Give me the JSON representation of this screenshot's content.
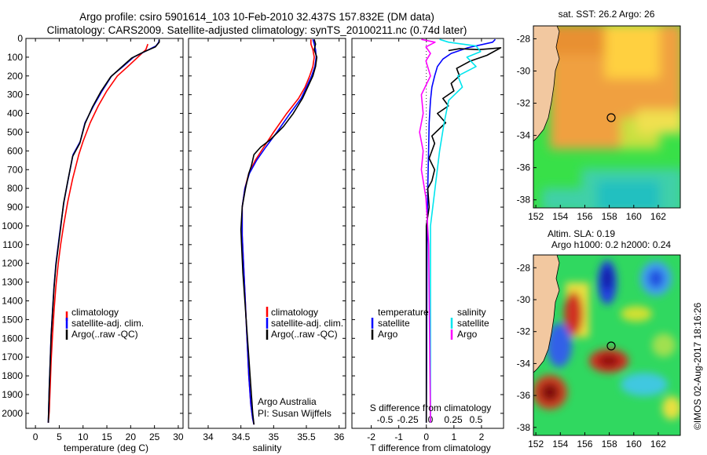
{
  "figure": {
    "title_line1": "Argo profile: csiro 5901614_103 10-Feb-2010 32.437S 157.832E (DM data)",
    "title_line2": "Climatology: CARS2009. Satellite-adjusted climatology: synTS_20100211.nc (0.74d later)",
    "credit": "©IMOS 02-Aug-2017 18:16:26",
    "colors": {
      "climatology": "#ff0000",
      "satellite": "#0000ff",
      "argo": "#000000",
      "satellite_s": "#00e5ee",
      "argo_s": "#ff00ff"
    }
  },
  "chart_data": [
    {
      "type": "line",
      "panel": "temperature",
      "xlabel": "temperature (deg C)",
      "xlim": [
        -2,
        31
      ],
      "ylim": [
        2080,
        0
      ],
      "xticks": [
        "0",
        "5",
        "10",
        "15",
        "20",
        "25",
        "30"
      ],
      "yticks": [
        "0",
        "100",
        "200",
        "300",
        "400",
        "500",
        "600",
        "700",
        "800",
        "900",
        "1000",
        "1100",
        "1200",
        "1300",
        "1400",
        "1500",
        "1600",
        "1700",
        "1800",
        "1900",
        "2000"
      ],
      "legend": [
        "climatology",
        "satellite-adj. clim.",
        "Argo(..raw -QC)"
      ],
      "series": [
        {
          "name": "climatology",
          "color": "#ff0000",
          "x": [
            23.6,
            23.2,
            21.5,
            19.4,
            17.2,
            15.0,
            13.2,
            11.5,
            10.0,
            9.1,
            7.8,
            6.8,
            5.9,
            5.3,
            4.8,
            4.3,
            3.9,
            3.6,
            3.3,
            3.1,
            2.9,
            2.7
          ],
          "y": [
            30,
            60,
            100,
            150,
            200,
            280,
            360,
            450,
            550,
            620,
            750,
            870,
            1000,
            1100,
            1200,
            1320,
            1450,
            1580,
            1720,
            1860,
            1990,
            2050
          ]
        },
        {
          "name": "satellite-adj. clim.",
          "color": "#0000ff",
          "x": [
            26.0,
            25.9,
            25.3,
            23.0,
            20.6,
            18.4,
            16.0,
            14.0,
            12.2,
            10.4,
            9.4,
            7.9,
            6.9,
            6.0,
            5.3,
            4.8,
            4.3,
            3.9,
            3.6,
            3.3,
            3.1,
            2.9,
            2.7
          ],
          "y": [
            5,
            20,
            40,
            70,
            100,
            150,
            200,
            280,
            360,
            450,
            550,
            620,
            750,
            870,
            1000,
            1100,
            1200,
            1320,
            1450,
            1580,
            1720,
            1860,
            2050
          ]
        },
        {
          "name": "Argo(..raw -QC)",
          "color": "#000000",
          "x": [
            26.0,
            26.0,
            25.2,
            22.5,
            20.2,
            18.0,
            15.8,
            13.7,
            12.0,
            10.4,
            9.3,
            7.8,
            6.8,
            5.9,
            5.3,
            4.8,
            4.3,
            3.9,
            3.6,
            3.3,
            3.1,
            2.9,
            2.7
          ],
          "y": [
            5,
            20,
            45,
            75,
            105,
            155,
            205,
            285,
            365,
            455,
            560,
            630,
            760,
            880,
            1010,
            1110,
            1210,
            1330,
            1460,
            1590,
            1730,
            1870,
            2050
          ]
        }
      ]
    },
    {
      "type": "line",
      "panel": "salinity",
      "xlabel": "salinity",
      "xlim": [
        33.7,
        36.1
      ],
      "ylim": [
        2080,
        0
      ],
      "xticks": [
        "34",
        "34.5",
        "35",
        "35.5",
        "36"
      ],
      "legend": [
        "climatology",
        "satellite-adj. clim.",
        "Argo(..raw -QC)"
      ],
      "annotation": [
        "Argo Australia",
        "PI: Susan Wijffels"
      ],
      "series": [
        {
          "name": "climatology",
          "color": "#ff0000",
          "x": [
            35.57,
            35.57,
            35.6,
            35.62,
            35.6,
            35.55,
            35.48,
            35.38,
            35.2,
            35.0,
            34.85,
            34.72,
            34.62,
            34.56,
            34.52,
            34.52,
            34.54,
            34.56,
            34.58,
            34.6,
            34.62,
            34.65,
            34.68,
            34.7
          ],
          "y": [
            5,
            30,
            60,
            100,
            150,
            200,
            260,
            320,
            400,
            500,
            580,
            650,
            720,
            800,
            900,
            1050,
            1200,
            1350,
            1500,
            1650,
            1800,
            1950,
            2030,
            2060
          ]
        },
        {
          "name": "satellite-adj. clim.",
          "color": "#0000ff",
          "x": [
            35.6,
            35.62,
            35.64,
            35.65,
            35.63,
            35.58,
            35.5,
            35.42,
            35.25,
            35.05,
            34.88,
            34.74,
            34.63,
            34.56,
            34.52,
            34.52,
            34.54,
            34.56,
            34.58,
            34.6,
            34.62,
            34.65,
            34.68,
            34.7
          ],
          "y": [
            5,
            30,
            60,
            100,
            150,
            200,
            260,
            320,
            400,
            500,
            580,
            650,
            720,
            800,
            900,
            1050,
            1200,
            1350,
            1500,
            1650,
            1800,
            1950,
            2030,
            2060
          ]
        },
        {
          "name": "Argo(..raw -QC)",
          "color": "#000000",
          "x": [
            35.62,
            35.64,
            35.62,
            35.66,
            35.64,
            35.6,
            35.52,
            35.44,
            35.3,
            35.15,
            34.95,
            34.8,
            34.7,
            34.66,
            34.62,
            34.57,
            34.52,
            34.5,
            34.51,
            34.53,
            34.56,
            34.59,
            34.62,
            34.65,
            34.68,
            34.7
          ],
          "y": [
            5,
            30,
            60,
            100,
            150,
            200,
            260,
            320,
            400,
            470,
            540,
            580,
            620,
            680,
            720,
            800,
            900,
            1020,
            1100,
            1250,
            1400,
            1550,
            1700,
            1850,
            2000,
            2060
          ]
        }
      ]
    },
    {
      "type": "line",
      "panel": "difference",
      "xlabel": "T difference from climatology",
      "xlabel_top": "S difference from climatology",
      "xlim": [
        -2.7,
        2.8
      ],
      "ylim": [
        2080,
        0
      ],
      "xticks": [
        "-2",
        "-1",
        "0",
        "1",
        "2"
      ],
      "xticks_s": [
        "-0.5",
        "-0.25",
        "0",
        "0.25",
        "0.5"
      ],
      "legend_t": {
        "title": "temperature",
        "items": [
          "satellite",
          "Argo"
        ]
      },
      "legend_s": {
        "title": "salinity",
        "items": [
          "satellite",
          "Argo"
        ]
      },
      "series": [
        {
          "name": "temperature satellite",
          "color": "#0000ff",
          "x": [
            2.5,
            2.4,
            1.5,
            0.9,
            0.6,
            0.4,
            0.3,
            0.2,
            0.15,
            0.1,
            0.08,
            0.05,
            0.03,
            0.02,
            0.01,
            0.0
          ],
          "y": [
            5,
            20,
            50,
            80,
            110,
            150,
            200,
            260,
            330,
            450,
            600,
            800,
            1000,
            1300,
            1700,
            2050
          ]
        },
        {
          "name": "temperature Argo",
          "color": "#000000",
          "x": [
            0.8,
            1.2,
            1.9,
            2.7,
            2.2,
            1.6,
            1.1,
            1.2,
            0.9,
            1.0,
            0.6,
            0.8,
            0.4,
            0.7,
            0.2,
            0.3,
            0.1,
            0.3,
            0.2,
            0.05,
            0.1,
            0.0,
            0.0
          ],
          "y": [
            65,
            55,
            60,
            50,
            90,
            120,
            160,
            200,
            240,
            280,
            320,
            360,
            400,
            450,
            520,
            560,
            640,
            700,
            760,
            800,
            900,
            1000,
            2050
          ]
        },
        {
          "name": "salinity satellite",
          "color": "#00e5ee",
          "x": [
            0.1,
            0.2,
            0.5,
            0.55,
            0.4,
            0.5,
            0.3,
            0.35,
            0.2,
            0.15,
            0.1,
            0.05,
            0.0,
            0.0
          ],
          "y": [
            5,
            20,
            40,
            70,
            100,
            150,
            200,
            260,
            330,
            450,
            600,
            800,
            1000,
            2050
          ]
        },
        {
          "name": "salinity Argo",
          "color": "#ff00ff",
          "x": [
            -0.1,
            0.05,
            -0.05,
            0.0,
            -0.05,
            0.0,
            -0.1,
            -0.08,
            -0.12,
            -0.08,
            -0.1,
            -0.05,
            -0.02,
            0.0
          ],
          "y": [
            5,
            20,
            45,
            80,
            120,
            200,
            300,
            400,
            500,
            600,
            700,
            850,
            1100,
            2050
          ]
        }
      ]
    },
    {
      "type": "heatmap",
      "panel": "sst-map",
      "title": "sat. SST: 26.2 Argo: 26",
      "xticks": [
        "152",
        "154",
        "156",
        "158",
        "160",
        "162"
      ],
      "yticks": [
        "-28",
        "-30",
        "-32",
        "-34",
        "-36",
        "-38"
      ],
      "marker": {
        "lon": 157.8,
        "lat": -32.4
      }
    },
    {
      "type": "heatmap",
      "panel": "sla-map",
      "title_line1": "Altim. SLA: 0.19",
      "title_line2": "Argo h1000: 0.2 h2000: 0.24",
      "xticks": [
        "152",
        "154",
        "156",
        "158",
        "160",
        "162"
      ],
      "yticks": [
        "-28",
        "-30",
        "-32",
        "-34",
        "-36",
        "-38"
      ],
      "marker": {
        "lon": 157.8,
        "lat": -32.4
      }
    }
  ]
}
